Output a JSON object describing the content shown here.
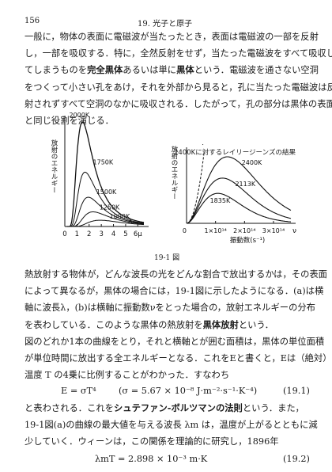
{
  "header": {
    "page_number": "156",
    "chapter_title": "19. 光子と原子"
  },
  "paragraph1": [
    "一般に，物体の表面に電磁波が当たったとき，表面は電磁波の一部を反射",
    "し，一部を吸収する．特に，全然反射をせず，当たった電磁波をすべて吸収し",
    "てしまうものを|完全黒体|あるいは単に|黒体|という．電磁波を通さない空洞",
    "をつくって小さい孔をあけ，それを外部から見ると，孔に当たった電磁波は反",
    "射されずすべて空洞のなかに吸収される．したがって，孔の部分は黒体の表面",
    "と同じ役割を演じる．"
  ],
  "chart_data": [
    {
      "type": "line",
      "panel": "(a)",
      "ylabel": "放射のエネルギー",
      "xlabel": "λ",
      "x_unit_label": "6μ",
      "x_ticks": [
        "0",
        "1",
        "2",
        "3",
        "4",
        "5",
        "6μ"
      ],
      "xlim": [
        0,
        6.5
      ],
      "series": [
        {
          "name": "2000K",
          "peak_x": 1.45,
          "peak_y": 1.0
        },
        {
          "name": "1750K",
          "peak_x": 1.66,
          "peak_y": 0.52
        },
        {
          "name": "1500K",
          "peak_x": 1.93,
          "peak_y": 0.28
        },
        {
          "name": "1250K",
          "peak_x": 2.32,
          "peak_y": 0.14
        },
        {
          "name": "1000K",
          "peak_x": 2.9,
          "peak_y": 0.06
        }
      ]
    },
    {
      "type": "line",
      "panel": "(b)",
      "ylabel": "放射のエネルギー",
      "xlabel": "振動数(s⁻¹)",
      "x_unit_symbol": "ν",
      "x_ticks": [
        "0",
        "1×10¹⁴",
        "2×10¹⁴",
        "3×10¹⁴"
      ],
      "xlim": [
        0,
        3.6
      ],
      "annotation": "2400Kに対するレイリージーンズの結果",
      "series": [
        {
          "name": "2400K",
          "peak_x": 1.41,
          "peak_y": 1.0
        },
        {
          "name": "2113K",
          "peak_x": 1.24,
          "peak_y": 0.68
        },
        {
          "name": "1835K",
          "peak_x": 1.08,
          "peak_y": 0.45
        }
      ]
    }
  ],
  "caption": "19-1 図",
  "paragraph2": [
    "熱放射する物体が，どんな波長の光をどんな割合で放出するかは，その表面",
    "によって異なるが，黒体の場合には，19-1図に示したようになる．(a)は横",
    "軸に波長λ，(b)は横軸に振動数νをとった場合の，放射エネルギーの分布",
    "を表わしている．このような黒体の熱放射を|黒体放射|という．"
  ],
  "paragraph3": [
    "図のどれか1本の曲線をとり，それと横軸とが囲む面積は，黒体の単位面積",
    "が単位時間に放出する全エネルギーとなる．これをEと書くと，Eは（絶対）",
    "温度 T の4乗に比例することがわかった．すなわち"
  ],
  "equation1": {
    "lhs": "E = σT⁴",
    "rhs": "(σ = 5.67 × 10⁻⁸ J·m⁻²·s⁻¹·K⁻⁴)",
    "number": "(19.1)"
  },
  "paragraph4": [
    "と表わされる．これを|シュテファン-ボルツマンの法則|という．また，",
    "19-1図(a)の曲線の最大値を与える波長 λm は，温度が上がるとともに減",
    "少していく．ウィーンは，この関係を理論的に研究し，1896年"
  ],
  "equation2": {
    "lhs": "λmT = 2.898 × 10⁻³ m·K",
    "number": "(19.2)"
  }
}
